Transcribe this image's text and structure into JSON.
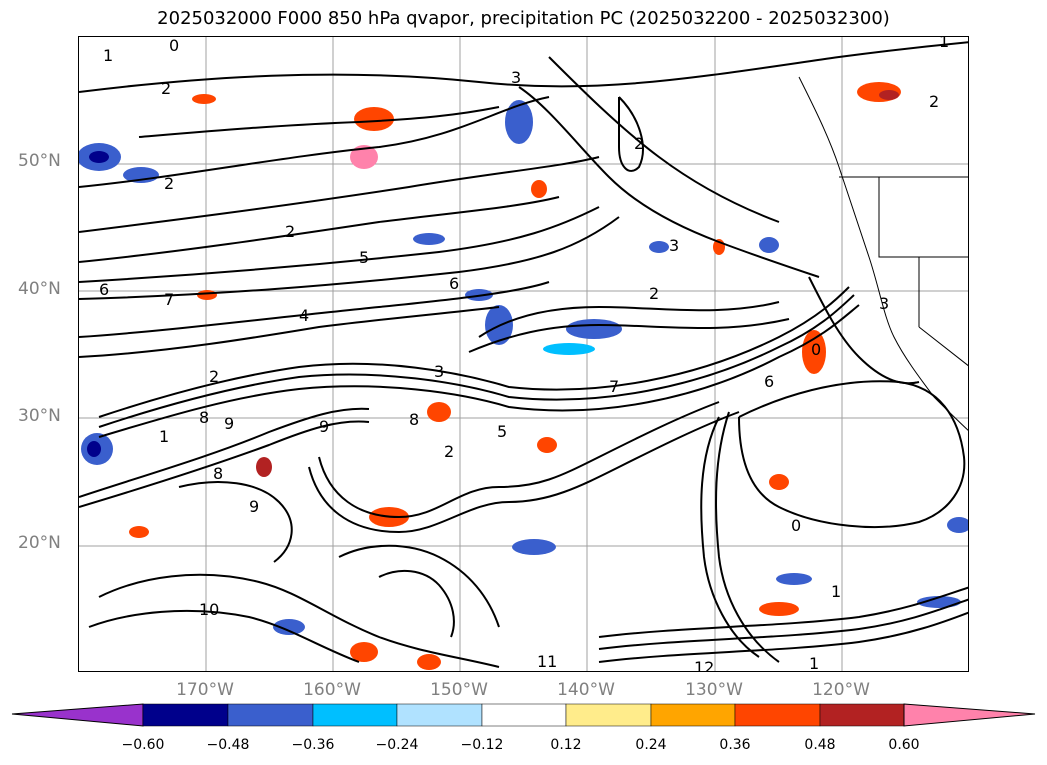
{
  "title": "2025032000 F000 850 hPa qvapor, precipitation PC (2025032200 - 2025032300)",
  "map": {
    "lat_labels": [
      "50°N",
      "40°N",
      "30°N",
      "20°N"
    ],
    "lon_labels": [
      "170°W",
      "160°W",
      "150°W",
      "140°W",
      "130°W",
      "120°W"
    ],
    "contour_labels": [
      "1",
      "0",
      "2",
      "3",
      "2",
      "5",
      "6",
      "7",
      "6",
      "4",
      "2",
      "3",
      "8",
      "9",
      "7",
      "5",
      "2",
      "8",
      "9",
      "10",
      "11",
      "12",
      "1",
      "0",
      "3",
      "6",
      "2",
      "0",
      "2",
      "3",
      "2",
      "2",
      "1",
      "1",
      "9",
      "8",
      "1"
    ],
    "colors": {
      "grid": "#a0a0a0",
      "contour": "#000000",
      "coast": "#000000"
    }
  },
  "colorbar": {
    "tick_labels": [
      "−0.60",
      "−0.48",
      "−0.36",
      "−0.24",
      "−0.12",
      "0.12",
      "0.24",
      "0.36",
      "0.48",
      "0.60"
    ],
    "colors": [
      "#9932CC",
      "#00008B",
      "#3A5FCD",
      "#00BFFF",
      "#B0E2FF",
      "#FFFFFF",
      "#FFEC8B",
      "#FFA500",
      "#FF4500",
      "#B22222",
      "#FF82AB"
    ]
  }
}
